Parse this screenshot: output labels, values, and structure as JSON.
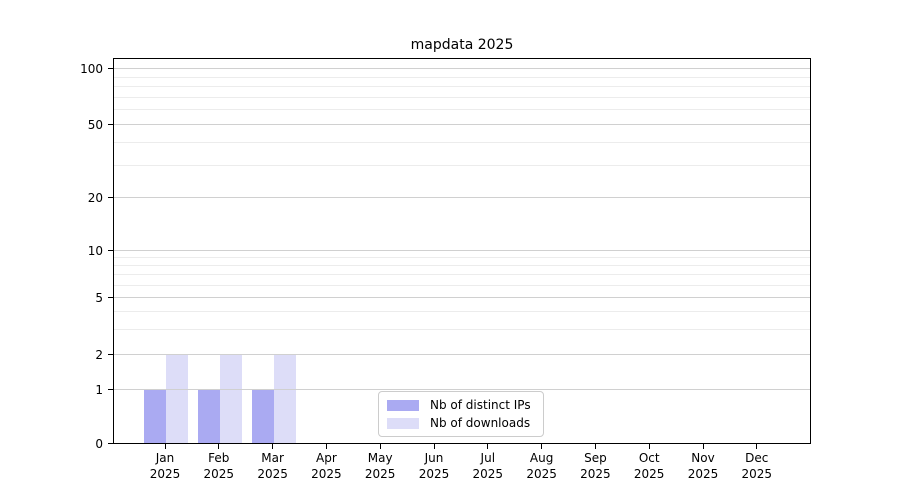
{
  "title": "mapdata 2025",
  "colors": {
    "distinct_ips": "#aaaaf2",
    "downloads": "#ddddf8",
    "grid_major": "#d0d0d0",
    "grid_minor": "#ececec",
    "spine": "#000000",
    "legend_border": "#cccccc",
    "background": "#ffffff"
  },
  "legend": {
    "items": [
      {
        "label": "Nb of distinct IPs"
      },
      {
        "label": "Nb of downloads"
      }
    ]
  },
  "chart_data": {
    "type": "bar",
    "title": "mapdata 2025",
    "categories": [
      "Jan",
      "Feb",
      "Mar",
      "Apr",
      "May",
      "Jun",
      "Jul",
      "Aug",
      "Sep",
      "Oct",
      "Nov",
      "Dec"
    ],
    "year_label": "2025",
    "series": [
      {
        "name": "Nb of distinct IPs",
        "color_key": "distinct_ips",
        "values": [
          1,
          1,
          1,
          0,
          0,
          0,
          0,
          0,
          0,
          0,
          0,
          0
        ]
      },
      {
        "name": "Nb of downloads",
        "color_key": "downloads",
        "values": [
          2,
          2,
          2,
          0,
          0,
          0,
          0,
          0,
          0,
          0,
          0,
          0
        ]
      }
    ],
    "xlabel": "",
    "ylabel": "",
    "y_axis": {
      "scale": "log-like",
      "tick_values": [
        0,
        1,
        2,
        5,
        10,
        20,
        50,
        100
      ],
      "minor_tick_values": [
        3,
        4,
        6,
        7,
        8,
        9,
        30,
        40,
        60,
        70,
        80,
        90
      ],
      "ylim": [
        0,
        110
      ],
      "anchor_fractions": [
        [
          0,
          0
        ],
        [
          1,
          0.1399
        ],
        [
          2,
          0.2306
        ],
        [
          5,
          0.3782
        ],
        [
          10,
          0.5
        ],
        [
          20,
          0.6373
        ],
        [
          50,
          0.8264
        ],
        [
          100,
          0.9715
        ]
      ]
    },
    "grid": "horizontal only, major + minor",
    "legend_position": "lower center"
  }
}
